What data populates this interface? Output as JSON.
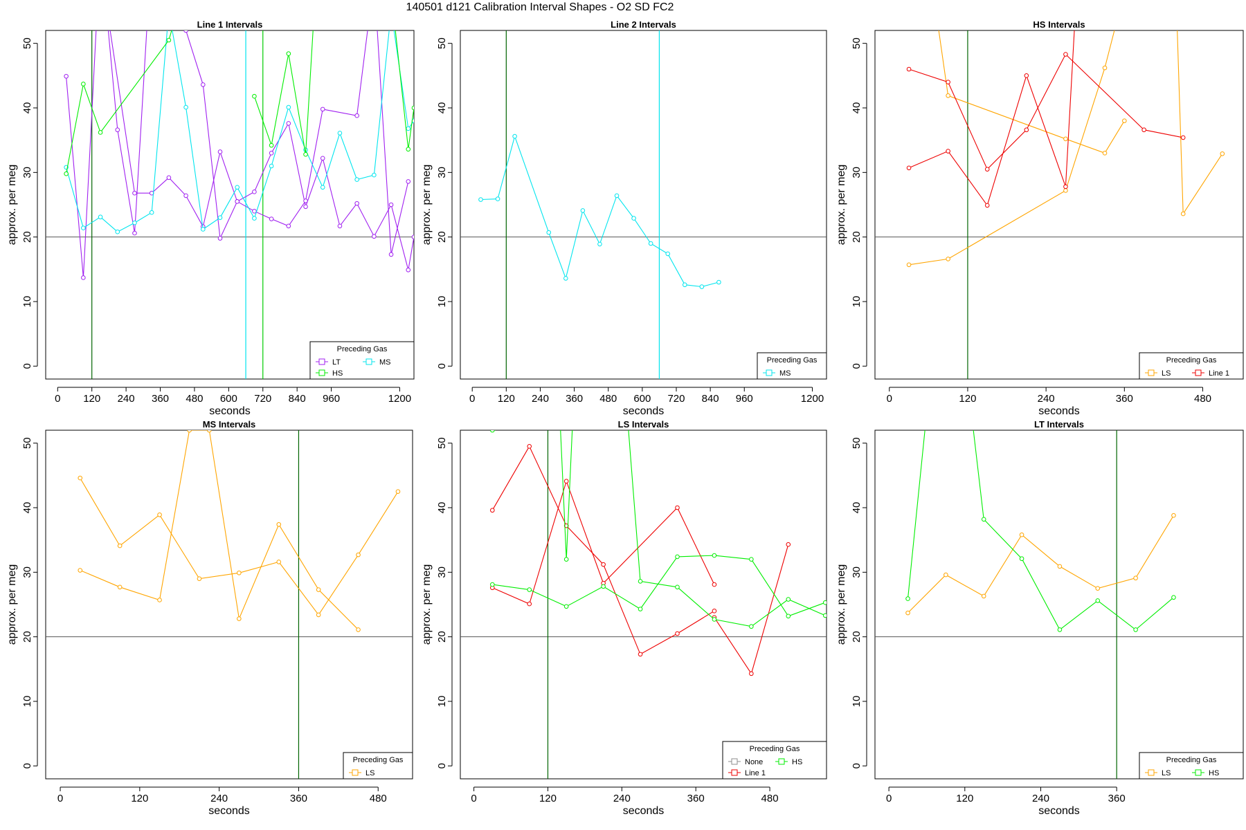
{
  "figure_title": "140501   d121   Calibration Interval Shapes - O2 SD FC2",
  "chart_data": [
    {
      "type": "line",
      "title": "Line 1 Intervals",
      "xlabel": "seconds",
      "ylabel": "approx. per meg",
      "xlim": [
        -42,
        1250
      ],
      "ylim": [
        -2,
        52
      ],
      "xticks": [
        0,
        120,
        240,
        360,
        480,
        600,
        720,
        840,
        960,
        1200
      ],
      "yticks": [
        0,
        10,
        20,
        30,
        40,
        50
      ],
      "hline": 20,
      "vlines": [
        {
          "x": 120,
          "color": "#006400"
        },
        {
          "x": 660,
          "color": "#00e5ee"
        },
        {
          "x": 720,
          "color": "#00cd00"
        }
      ],
      "legend": {
        "title": "Preceding Gas",
        "position": "bottom-right",
        "entries": [
          {
            "label": "LT",
            "color": "#a020f0"
          },
          {
            "label": "MS",
            "color": "#00e5ee"
          },
          {
            "label": "HS",
            "color": "#00ee00"
          }
        ],
        "cols": 2
      },
      "series": [
        {
          "name": "LT",
          "color": "#a020f0",
          "x": [
            30,
            90,
            150,
            210,
            270,
            330,
            390,
            450,
            510,
            570,
            630,
            690,
            750,
            810,
            870,
            930,
            990,
            1050,
            1110,
            1170,
            1230,
            1250
          ],
          "y": [
            44.9,
            13.7,
            65,
            36.6,
            20.6,
            65,
            62,
            52,
            43.6,
            19.8,
            25.5,
            27,
            33,
            37.6,
            24.7,
            32.2,
            21.7,
            25.2,
            20.1,
            25.0,
            14.9,
            20
          ]
        },
        {
          "name": "LT",
          "color": "#a020f0",
          "x": [
            30,
            90,
            150,
            270,
            330,
            390,
            450,
            510,
            570,
            630,
            690,
            750,
            810,
            870,
            930,
            1050,
            1110,
            1170,
            1230
          ],
          "y": [
            55,
            60,
            62,
            26.8,
            26.8,
            29.2,
            26.4,
            21.6,
            33.2,
            25.5,
            24.0,
            22.8,
            21.7,
            25.6,
            39.8,
            38.8,
            60,
            17.3,
            28.6
          ]
        },
        {
          "name": "MS",
          "color": "#00e5ee",
          "x": [
            30,
            90,
            150,
            210,
            270,
            330,
            390,
            450,
            510,
            570,
            630,
            690,
            750,
            810,
            870,
            930,
            990,
            1050,
            1110,
            1170,
            1230,
            1250
          ],
          "y": [
            30.8,
            21.4,
            23.1,
            20.8,
            22.2,
            23.8,
            55,
            40.1,
            21.2,
            23.0,
            27.7,
            22.9,
            31.0,
            40.1,
            33.5,
            27.7,
            36.1,
            28.9,
            29.6,
            55,
            36.8,
            38
          ]
        },
        {
          "name": "HS",
          "color": "#00ee00",
          "x": [
            30,
            90,
            150,
            390,
            420
          ],
          "y": [
            29.8,
            43.7,
            36.2,
            50.5,
            55
          ]
        },
        {
          "name": "HS",
          "color": "#00ee00",
          "x": [
            690,
            750,
            810,
            870,
            900
          ],
          "y": [
            41.8,
            34.2,
            48.4,
            32.8,
            55
          ]
        },
        {
          "name": "HS",
          "color": "#00ee00",
          "x": [
            1170,
            1230,
            1250
          ],
          "y": [
            58,
            33.6,
            40
          ]
        }
      ]
    },
    {
      "type": "line",
      "title": "Line 2 Intervals",
      "xlabel": "seconds",
      "ylabel": "approx. per meg",
      "xlim": [
        -42,
        1250
      ],
      "ylim": [
        -2,
        52
      ],
      "xticks": [
        0,
        120,
        240,
        360,
        480,
        600,
        720,
        840,
        960,
        1200
      ],
      "yticks": [
        0,
        10,
        20,
        30,
        40,
        50
      ],
      "hline": 20,
      "vlines": [
        {
          "x": 120,
          "color": "#006400"
        },
        {
          "x": 660,
          "color": "#00e5ee"
        }
      ],
      "legend": {
        "title": "Preceding Gas",
        "position": "bottom-right",
        "entries": [
          {
            "label": "MS",
            "color": "#00e5ee"
          }
        ],
        "cols": 1
      },
      "series": [
        {
          "name": "MS",
          "color": "#00e5ee",
          "x": [
            30,
            90,
            150,
            270,
            330,
            390,
            450,
            510,
            570,
            630,
            690,
            750,
            810,
            870
          ],
          "y": [
            25.8,
            25.9,
            35.6,
            20.7,
            13.6,
            24.1,
            18.9,
            26.4,
            22.9,
            19.0,
            17.4,
            12.6,
            12.3,
            13.0
          ]
        }
      ]
    },
    {
      "type": "line",
      "title": "HS Intervals",
      "xlabel": "seconds",
      "ylabel": "approx. per meg",
      "xlim": [
        -22,
        542
      ],
      "ylim": [
        -2,
        52
      ],
      "xticks": [
        0,
        120,
        240,
        360,
        480
      ],
      "yticks": [
        0,
        10,
        20,
        30,
        40,
        50
      ],
      "hline": 20,
      "vlines": [
        {
          "x": 120,
          "color": "#006400"
        }
      ],
      "legend": {
        "title": "Preceding Gas",
        "position": "bottom-right",
        "entries": [
          {
            "label": "LS",
            "color": "#ffa500"
          },
          {
            "label": "Line 1",
            "color": "#ee0000"
          }
        ],
        "cols": 2
      },
      "series": [
        {
          "name": "LS",
          "color": "#ffa500",
          "x": [
            30,
            90,
            270,
            330,
            360
          ],
          "y": [
            15.7,
            16.6,
            27.2,
            46.2,
            58
          ]
        },
        {
          "name": "LS",
          "color": "#ffa500",
          "x": [
            70,
            90,
            270,
            330,
            360
          ],
          "y": [
            56,
            41.9,
            35.2,
            33.0,
            38
          ]
        },
        {
          "name": "LS",
          "color": "#ffa500",
          "x": [
            440,
            450,
            510
          ],
          "y": [
            55,
            23.6,
            32.9
          ]
        },
        {
          "name": "Line 1",
          "color": "#ee0000",
          "x": [
            30,
            90,
            150,
            210,
            270,
            285
          ],
          "y": [
            30.7,
            33.3,
            24.9,
            45.0,
            27.8,
            55
          ]
        },
        {
          "name": "Line 1",
          "color": "#ee0000",
          "x": [
            30,
            90,
            150,
            210,
            270,
            390,
            450
          ],
          "y": [
            46.0,
            44.0,
            30.5,
            36.6,
            48.3,
            36.6,
            35.4
          ]
        }
      ]
    },
    {
      "type": "line",
      "title": "MS Intervals",
      "xlabel": "seconds",
      "ylabel": "approx. per meg",
      "xlim": [
        -22,
        532
      ],
      "ylim": [
        -2,
        52
      ],
      "xticks": [
        0,
        120,
        240,
        360,
        480
      ],
      "yticks": [
        0,
        10,
        20,
        30,
        40,
        50
      ],
      "hline": 20,
      "vlines": [
        {
          "x": 360,
          "color": "#006400"
        }
      ],
      "legend": {
        "title": "Preceding Gas",
        "position": "bottom-right",
        "entries": [
          {
            "label": "LS",
            "color": "#ffa500"
          }
        ],
        "cols": 1
      },
      "series": [
        {
          "name": "LS",
          "color": "#ffa500",
          "x": [
            30,
            90,
            150,
            210,
            270,
            330,
            390,
            450,
            510
          ],
          "y": [
            44.6,
            34.1,
            38.9,
            29.0,
            29.9,
            31.6,
            23.4,
            32.7,
            42.5
          ]
        },
        {
          "name": "LS",
          "color": "#ffa500",
          "x": [
            30,
            90,
            150,
            195,
            225,
            270,
            330,
            390,
            450
          ],
          "y": [
            30.3,
            27.7,
            25.7,
            52,
            52,
            22.8,
            37.4,
            27.3,
            21.1
          ]
        }
      ]
    },
    {
      "type": "line",
      "title": "LS Intervals",
      "xlabel": "seconds",
      "ylabel": "approx. per meg",
      "xlim": [
        -22,
        572
      ],
      "ylim": [
        -2,
        52
      ],
      "xticks": [
        0,
        120,
        240,
        360,
        480
      ],
      "yticks": [
        0,
        10,
        20,
        30,
        40,
        50
      ],
      "hline": 20,
      "vlines": [
        {
          "x": 120,
          "color": "#006400"
        }
      ],
      "legend": {
        "title": "Preceding Gas",
        "position": "bottom-right",
        "entries": [
          {
            "label": "None",
            "color": "#8c8c8c"
          },
          {
            "label": "HS",
            "color": "#00ee00"
          },
          {
            "label": "Line 1",
            "color": "#ee0000"
          }
        ],
        "cols": 2
      },
      "series": [
        {
          "name": "Line 1",
          "color": "#ee0000",
          "x": [
            30,
            90,
            150,
            210,
            270,
            330,
            390
          ],
          "y": [
            39.6,
            49.5,
            37.2,
            31.2,
            17.3,
            20.5,
            24.0
          ]
        },
        {
          "name": "Line 1",
          "color": "#ee0000",
          "x": [
            30,
            90,
            150,
            210,
            330,
            390
          ],
          "y": [
            27.6,
            25.1,
            44.1,
            28.3,
            40.0,
            28.1
          ]
        },
        {
          "name": "Line 1",
          "color": "#ee0000",
          "x": [
            390,
            450,
            510
          ],
          "y": [
            23.0,
            14.3,
            34.3
          ]
        },
        {
          "name": "HS",
          "color": "#00ee00",
          "x": [
            30,
            90,
            150,
            210,
            270,
            330,
            390,
            450,
            510,
            570
          ],
          "y": [
            28.1,
            27.3,
            24.7,
            27.8,
            24.3,
            32.4,
            32.6,
            32.0,
            23.2,
            25.3
          ]
        },
        {
          "name": "HS",
          "color": "#00ee00",
          "x": [
            25,
            30,
            140,
            150,
            160,
            250,
            270,
            330,
            390,
            450,
            510,
            570
          ],
          "y": [
            53,
            52,
            53,
            32.0,
            53,
            53,
            28.6,
            27.7,
            22.7,
            21.6,
            25.8,
            23.3
          ]
        }
      ]
    },
    {
      "type": "line",
      "title": "LT Intervals",
      "xlabel": "seconds",
      "ylabel": "approx. per meg",
      "xlim": [
        -22,
        560
      ],
      "ylim": [
        -2,
        52
      ],
      "xticks": [
        0,
        120,
        240,
        360
      ],
      "yticks": [
        0,
        10,
        20,
        30,
        40,
        50
      ],
      "hline": 20,
      "vlines": [
        {
          "x": 360,
          "color": "#006400"
        }
      ],
      "legend": {
        "title": "Preceding Gas",
        "position": "bottom-right",
        "entries": [
          {
            "label": "LS",
            "color": "#ffa500"
          },
          {
            "label": "HS",
            "color": "#00ee00"
          }
        ],
        "cols": 2
      },
      "series": [
        {
          "name": "LS",
          "color": "#ffa500",
          "x": [
            30,
            90,
            150,
            210,
            270,
            330,
            390,
            450
          ],
          "y": [
            23.7,
            29.6,
            26.3,
            35.8,
            30.9,
            27.5,
            29.1,
            38.8
          ]
        },
        {
          "name": "HS",
          "color": "#00ee00",
          "x": [
            30,
            60,
            130,
            150,
            210,
            270,
            330,
            390,
            450
          ],
          "y": [
            25.9,
            55,
            55,
            38.2,
            32.1,
            21.1,
            25.6,
            21.1,
            26.1
          ]
        }
      ]
    }
  ]
}
